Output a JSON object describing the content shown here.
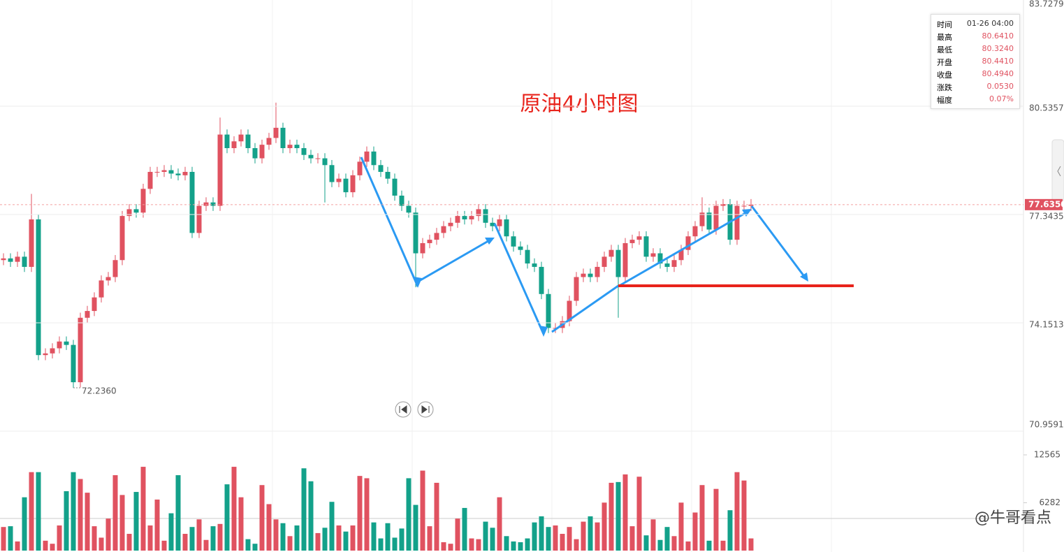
{
  "chart_data": {
    "type": "candlestick",
    "title": "原油4小时图",
    "open": [
      76.0,
      76.05,
      75.95,
      76.1,
      75.8,
      77.2,
      73.2,
      73.25,
      73.4,
      73.6,
      73.5,
      72.4,
      74.3,
      74.5,
      74.9,
      75.4,
      75.5,
      76.0,
      77.3,
      77.5,
      77.4,
      78.1,
      78.6,
      78.6,
      78.65,
      78.55,
      78.5,
      78.6,
      76.8,
      77.6,
      77.7,
      77.6,
      79.7,
      79.3,
      79.5,
      79.7,
      79.3,
      79.0,
      79.4,
      79.6,
      79.9,
      79.3,
      79.4,
      79.3,
      79.1,
      79.0,
      79.0,
      78.8,
      78.3,
      78.4,
      78.0,
      78.5,
      78.9,
      79.2,
      78.8,
      78.6,
      78.4,
      77.9,
      77.6,
      77.4,
      76.2,
      76.5,
      76.6,
      76.8,
      77.0,
      77.1,
      77.3,
      77.2,
      77.3,
      77.5,
      77.1,
      77.0,
      77.2,
      76.7,
      76.4,
      76.3,
      75.9,
      75.8,
      75.0,
      74.0,
      74.0,
      74.2,
      74.8,
      75.5,
      75.6,
      75.5,
      75.8,
      76.1,
      76.3,
      75.5,
      76.5,
      76.6,
      76.7,
      76.1,
      76.2,
      75.9,
      75.8,
      76.0,
      76.3,
      76.7,
      77.0,
      77.4,
      76.9,
      77.6,
      77.65,
      76.6,
      77.6,
      77.6
    ],
    "high": [
      76.2,
      76.2,
      76.25,
      76.25,
      77.95,
      77.35,
      73.4,
      73.55,
      73.75,
      73.75,
      73.65,
      74.45,
      74.65,
      75.05,
      75.55,
      75.65,
      76.15,
      77.45,
      77.65,
      77.65,
      78.25,
      78.75,
      78.75,
      78.8,
      78.8,
      78.7,
      78.75,
      78.75,
      77.75,
      77.85,
      77.85,
      80.2,
      79.85,
      79.65,
      79.85,
      79.85,
      79.45,
      79.55,
      79.75,
      80.64,
      80.05,
      79.55,
      79.55,
      79.45,
      79.25,
      79.15,
      79.15,
      78.95,
      78.55,
      78.55,
      78.65,
      79.05,
      79.35,
      79.35,
      78.95,
      78.75,
      78.55,
      78.05,
      77.75,
      77.55,
      76.65,
      76.75,
      76.95,
      77.15,
      77.25,
      77.45,
      77.45,
      77.45,
      77.65,
      77.65,
      77.25,
      77.35,
      77.35,
      76.85,
      76.55,
      76.45,
      76.05,
      75.95,
      75.15,
      74.15,
      74.35,
      74.95,
      75.65,
      75.75,
      75.75,
      75.95,
      76.25,
      76.45,
      76.45,
      76.65,
      76.75,
      76.85,
      76.85,
      76.35,
      76.35,
      76.05,
      76.15,
      76.45,
      76.85,
      77.15,
      77.85,
      77.55,
      77.75,
      77.8,
      77.8,
      77.75,
      77.75,
      77.8
    ],
    "low": [
      75.85,
      75.8,
      75.8,
      75.65,
      75.65,
      73.05,
      73.05,
      73.1,
      73.25,
      73.35,
      72.236,
      72.25,
      74.15,
      74.35,
      74.75,
      75.25,
      75.35,
      75.85,
      77.15,
      77.25,
      77.25,
      77.95,
      78.45,
      78.45,
      78.4,
      78.35,
      78.35,
      76.65,
      76.65,
      77.45,
      77.45,
      77.45,
      79.15,
      79.15,
      79.35,
      79.15,
      78.85,
      78.85,
      79.25,
      79.45,
      79.15,
      79.15,
      79.15,
      78.95,
      78.85,
      78.85,
      77.7,
      78.15,
      78.15,
      77.85,
      77.85,
      78.35,
      78.75,
      78.65,
      78.45,
      78.25,
      77.75,
      77.45,
      77.25,
      75.2,
      76.05,
      76.35,
      76.45,
      76.65,
      76.85,
      76.95,
      77.05,
      77.05,
      77.15,
      76.95,
      76.85,
      76.85,
      76.55,
      76.25,
      76.15,
      75.75,
      75.65,
      74.85,
      73.85,
      73.85,
      73.85,
      74.05,
      74.65,
      75.35,
      75.35,
      75.35,
      75.65,
      75.95,
      74.3,
      75.35,
      76.35,
      76.45,
      75.95,
      75.95,
      75.75,
      75.65,
      75.65,
      75.85,
      76.15,
      76.55,
      76.85,
      76.75,
      76.75,
      77.45,
      76.45,
      76.45,
      77.45,
      77.45
    ],
    "close": [
      76.05,
      75.95,
      76.1,
      75.8,
      77.2,
      73.2,
      73.25,
      73.4,
      73.6,
      73.5,
      72.4,
      74.3,
      74.5,
      74.9,
      75.4,
      75.5,
      76.0,
      77.3,
      77.5,
      77.4,
      78.1,
      78.6,
      78.6,
      78.65,
      78.55,
      78.5,
      78.6,
      76.8,
      77.6,
      77.7,
      77.6,
      79.7,
      79.3,
      79.5,
      79.7,
      79.3,
      79.0,
      79.4,
      79.6,
      79.9,
      79.3,
      79.4,
      79.3,
      79.1,
      79.0,
      79.0,
      78.8,
      78.3,
      78.4,
      78.0,
      78.5,
      78.9,
      79.2,
      78.8,
      78.6,
      78.4,
      77.9,
      77.6,
      77.4,
      76.2,
      76.5,
      76.6,
      76.8,
      77.0,
      77.1,
      77.3,
      77.2,
      77.3,
      77.5,
      77.1,
      77.0,
      77.2,
      76.7,
      76.4,
      76.3,
      75.9,
      75.8,
      75.0,
      74.0,
      74.0,
      74.2,
      74.8,
      75.5,
      75.6,
      75.5,
      75.8,
      76.1,
      76.3,
      75.5,
      76.5,
      76.6,
      76.7,
      76.1,
      76.2,
      75.9,
      75.8,
      76.0,
      76.3,
      76.7,
      77.0,
      77.4,
      76.9,
      77.6,
      77.65,
      76.6,
      77.6,
      77.6,
      77.635
    ],
    "volume": [
      3100,
      3200,
      1200,
      7000,
      10300,
      10300,
      1300,
      900,
      3300,
      7800,
      10300,
      9400,
      7600,
      3200,
      1700,
      4200,
      9900,
      7300,
      2200,
      7700,
      11000,
      3300,
      6700,
      1300,
      4900,
      9900,
      2200,
      3100,
      4100,
      1400,
      3200,
      3500,
      8700,
      11000,
      7000,
      1500,
      900,
      8600,
      6100,
      4100,
      3600,
      1900,
      3300,
      10800,
      9100,
      2300,
      3000,
      6400,
      3300,
      2500,
      3300,
      9800,
      9500,
      3700,
      1600,
      3600,
      1700,
      2900,
      9500,
      6000,
      10500,
      3200,
      8900,
      1100,
      900,
      4200,
      5600,
      1600,
      1500,
      3800,
      3000,
      7000,
      1900,
      1200,
      1100,
      1600,
      3700,
      4500,
      3100,
      3300,
      2200,
      3100,
      1500,
      3800,
      4500,
      3700,
      6300,
      8900,
      9000,
      10000,
      3200,
      9700,
      2000,
      4100,
      1400,
      3100,
      1900,
      6300,
      1200,
      5000,
      8600,
      1300,
      8100,
      1300,
      5300,
      10300,
      9200,
      1600
    ],
    "colors": {
      "up": "#e05260",
      "down": "#13a18a"
    },
    "ylim": [
      70.9591,
      83.7279
    ],
    "yticks": [
      {
        "value": 83.7279,
        "label": "83.7279"
      },
      {
        "value": 80.5357,
        "label": "80.5357"
      },
      {
        "value": 77.3435,
        "label": "77.3435"
      },
      {
        "value": 74.1513,
        "label": "74.1513"
      },
      {
        "value": 70.9591,
        "label": "70.9591"
      }
    ],
    "last_price": {
      "value": 77.635,
      "label": "77.6350"
    },
    "low_mark": {
      "value": 72.236,
      "label": "72.2360"
    },
    "volume_ylim": [
      0,
      15408
    ],
    "volume_ticks": [
      12565,
      6282
    ],
    "grid": true
  },
  "tooltip": {
    "rows": [
      [
        "时间",
        "01-26 04:00"
      ],
      [
        "最高",
        "80.6410"
      ],
      [
        "最低",
        "80.3240"
      ],
      [
        "开盘",
        "80.4410"
      ],
      [
        "收盘",
        "80.4940"
      ],
      [
        "涨跌",
        "0.0530"
      ],
      [
        "幅度",
        "0.07%"
      ]
    ]
  },
  "watermark": "@牛哥看点"
}
